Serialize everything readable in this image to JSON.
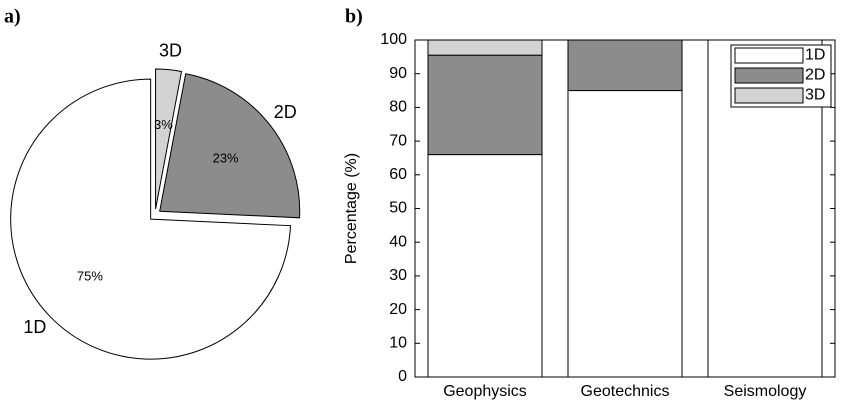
{
  "chart_data": [
    {
      "type": "pie",
      "panel_label": "a)",
      "categories": [
        "1D",
        "2D",
        "3D"
      ],
      "values": [
        75,
        23,
        3
      ],
      "value_labels": [
        "75%",
        "23%",
        "3%"
      ],
      "colors": [
        "#ffffff",
        "#8c8c8c",
        "#d3d3d3"
      ]
    },
    {
      "type": "bar",
      "panel_label": "b)",
      "stacked": true,
      "categories": [
        "Geophysics",
        "Geotechnics",
        "Seismology"
      ],
      "series": [
        {
          "name": "1D",
          "color": "#ffffff",
          "values": [
            66,
            85,
            100
          ]
        },
        {
          "name": "2D",
          "color": "#8c8c8c",
          "values": [
            29.5,
            15,
            0
          ]
        },
        {
          "name": "3D",
          "color": "#d3d3d3",
          "values": [
            4.5,
            0,
            0
          ]
        }
      ],
      "ylabel": "Percentage (%)",
      "ylim": [
        0,
        100
      ],
      "yticks": [
        0,
        10,
        20,
        30,
        40,
        50,
        60,
        70,
        80,
        90,
        100
      ],
      "legend": "upper right"
    }
  ]
}
